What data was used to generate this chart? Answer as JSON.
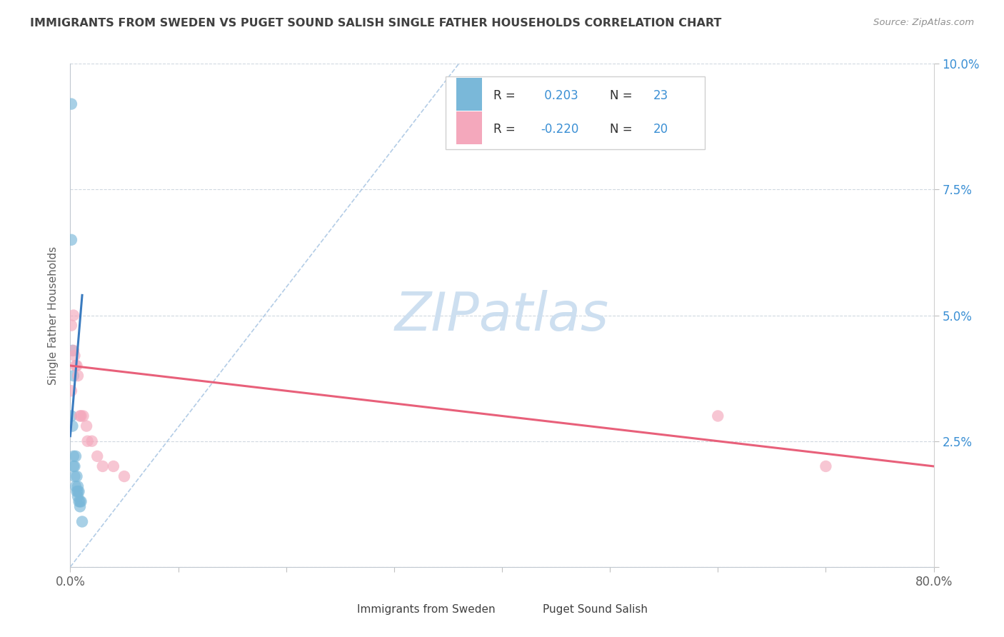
{
  "title": "IMMIGRANTS FROM SWEDEN VS PUGET SOUND SALISH SINGLE FATHER HOUSEHOLDS CORRELATION CHART",
  "source_text": "Source: ZipAtlas.com",
  "ylabel": "Single Father Households",
  "xlim": [
    0.0,
    0.8
  ],
  "ylim": [
    0.0,
    0.1
  ],
  "xticks": [
    0.0,
    0.1,
    0.2,
    0.3,
    0.4,
    0.5,
    0.6,
    0.7,
    0.8
  ],
  "xticklabels": [
    "0.0%",
    "",
    "",
    "",
    "",
    "",
    "",
    "",
    "80.0%"
  ],
  "yticks": [
    0.0,
    0.025,
    0.05,
    0.075,
    0.1
  ],
  "yticklabels_right": [
    "",
    "2.5%",
    "5.0%",
    "7.5%",
    "10.0%"
  ],
  "legend_r1_label": "R = ",
  "legend_r1_val": " 0.203",
  "legend_n1": "N = 23",
  "legend_r2_label": "R = ",
  "legend_r2_val": "-0.220",
  "legend_n2": "N = 20",
  "blue_scatter_color": "#7ab8d9",
  "pink_scatter_color": "#f4a8bc",
  "blue_line_color": "#3a7bbf",
  "pink_line_color": "#e8607a",
  "dashed_line_color": "#a0c0e0",
  "watermark_color": "#cddff0",
  "title_color": "#404040",
  "r_value_color": "#3a8fd4",
  "n_value_color": "#3a8fd4",
  "legend_label_color": "#404040",
  "source_color": "#909090",
  "axis_label_color": "#606060",
  "tick_label_color": "#606060",
  "grid_color": "#d0d8e0",
  "sweden_points_x": [
    0.001,
    0.001,
    0.001,
    0.002,
    0.002,
    0.003,
    0.003,
    0.003,
    0.004,
    0.004,
    0.005,
    0.005,
    0.006,
    0.006,
    0.007,
    0.007,
    0.007,
    0.008,
    0.008,
    0.009,
    0.009,
    0.01,
    0.011
  ],
  "sweden_points_y": [
    0.092,
    0.065,
    0.03,
    0.043,
    0.028,
    0.038,
    0.022,
    0.02,
    0.02,
    0.018,
    0.022,
    0.016,
    0.018,
    0.015,
    0.016,
    0.015,
    0.014,
    0.015,
    0.013,
    0.013,
    0.012,
    0.013,
    0.009
  ],
  "salish_points_x": [
    0.001,
    0.001,
    0.003,
    0.003,
    0.004,
    0.005,
    0.006,
    0.007,
    0.009,
    0.01,
    0.012,
    0.015,
    0.016,
    0.02,
    0.025,
    0.03,
    0.04,
    0.05,
    0.6,
    0.7
  ],
  "salish_points_y": [
    0.048,
    0.035,
    0.05,
    0.043,
    0.042,
    0.04,
    0.04,
    0.038,
    0.03,
    0.03,
    0.03,
    0.028,
    0.025,
    0.025,
    0.022,
    0.02,
    0.02,
    0.018,
    0.03,
    0.02
  ],
  "sweden_trend_x": [
    0.0,
    0.011
  ],
  "sweden_trend_y": [
    0.026,
    0.054
  ],
  "salish_trend_x": [
    0.0,
    0.8
  ],
  "salish_trend_y": [
    0.04,
    0.02
  ],
  "dashed_line_x": [
    0.0,
    0.36
  ],
  "dashed_line_y": [
    0.0,
    0.1
  ]
}
